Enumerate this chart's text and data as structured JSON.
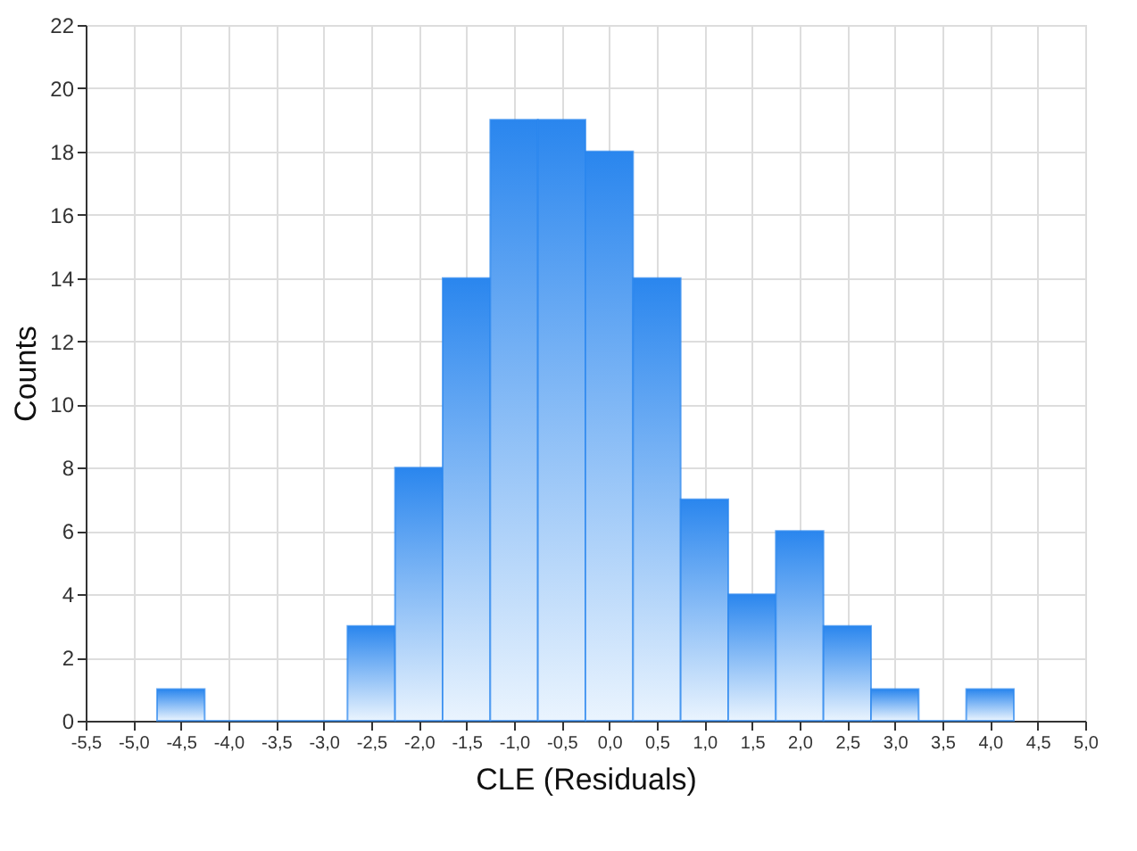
{
  "chart_data": {
    "type": "histogram",
    "xlabel": "CLE (Residuals)",
    "ylabel": "Counts",
    "bins": [
      -4.75,
      -4.25,
      -3.75,
      -3.25,
      -2.75,
      -2.25,
      -1.75,
      -1.25,
      -0.75,
      -0.25,
      0.25,
      0.75,
      1.25,
      1.75,
      2.25,
      2.75,
      3.25,
      3.75,
      4.25
    ],
    "values": [
      1,
      0,
      0,
      0,
      3,
      8,
      14,
      19,
      19,
      18,
      14,
      7,
      4,
      6,
      3,
      1,
      0,
      1
    ],
    "color": "#2a86ee",
    "xlim": [
      -5.5,
      5.0
    ],
    "xticks": [
      {
        "value": -5.5,
        "label": "-5,5"
      },
      {
        "value": -5.0,
        "label": "-5,0"
      },
      {
        "value": -4.5,
        "label": "-4,5"
      },
      {
        "value": -4.0,
        "label": "-4,0"
      },
      {
        "value": -3.5,
        "label": "-3,5"
      },
      {
        "value": -3.0,
        "label": "-3,0"
      },
      {
        "value": -2.5,
        "label": "-2,5"
      },
      {
        "value": -2.0,
        "label": "-2,0"
      },
      {
        "value": -1.5,
        "label": "-1,5"
      },
      {
        "value": -1.0,
        "label": "-1,0"
      },
      {
        "value": -0.5,
        "label": "-0,5"
      },
      {
        "value": 0.0,
        "label": "0,0"
      },
      {
        "value": 0.5,
        "label": "0,5"
      },
      {
        "value": 1.0,
        "label": "1,0"
      },
      {
        "value": 1.5,
        "label": "1,5"
      },
      {
        "value": 2.0,
        "label": "2,0"
      },
      {
        "value": 2.5,
        "label": "2,5"
      },
      {
        "value": 3.0,
        "label": "3,0"
      },
      {
        "value": 3.5,
        "label": "3,5"
      },
      {
        "value": 4.0,
        "label": "4,0"
      },
      {
        "value": 4.5,
        "label": "4,5"
      },
      {
        "value": 5.0,
        "label": "5,0"
      }
    ],
    "ylim": [
      0,
      22
    ],
    "yticks": [
      0,
      2,
      4,
      6,
      8,
      10,
      12,
      14,
      16,
      18,
      20,
      22
    ],
    "grid": true,
    "legend": false
  }
}
